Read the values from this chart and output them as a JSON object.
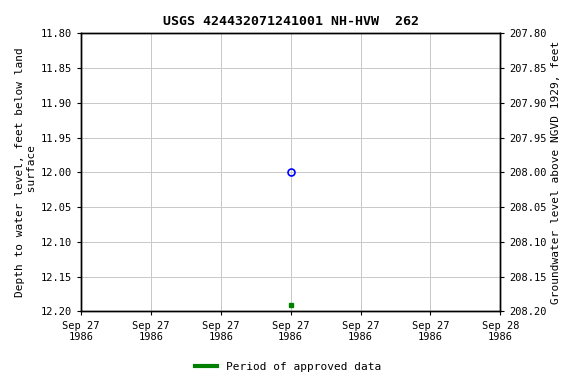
{
  "title": "USGS 424432071241001 NH-HVW  262",
  "ylabel_left": "Depth to water level, feet below land\n surface",
  "ylabel_right": "Groundwater level above NGVD 1929, feet",
  "xlabel_ticks": [
    "Sep 27\n1986",
    "Sep 27\n1986",
    "Sep 27\n1986",
    "Sep 27\n1986",
    "Sep 27\n1986",
    "Sep 27\n1986",
    "Sep 28\n1986"
  ],
  "ylim_left": [
    11.8,
    12.2
  ],
  "ylim_right_top": 208.2,
  "ylim_right_bottom": 207.8,
  "yticks_left": [
    11.8,
    11.85,
    11.9,
    11.95,
    12.0,
    12.05,
    12.1,
    12.15,
    12.2
  ],
  "ytick_labels_left": [
    "11.80",
    "11.85",
    "11.90",
    "11.95",
    "12.00",
    "12.05",
    "12.10",
    "12.15",
    "12.20"
  ],
  "yticks_right": [
    208.2,
    208.15,
    208.1,
    208.05,
    208.0,
    207.95,
    207.9,
    207.85,
    207.8
  ],
  "ytick_labels_right": [
    "208.20",
    "208.15",
    "208.10",
    "208.05",
    "208.00",
    "207.95",
    "207.90",
    "207.85",
    "207.80"
  ],
  "point_open_x": 3.0,
  "point_open_y": 12.0,
  "point_open_color": "blue",
  "point_filled_x": 3.0,
  "point_filled_y": 12.19,
  "point_filled_color": "green",
  "legend_label": "Period of approved data",
  "legend_color": "green",
  "background_color": "white",
  "grid_color": "#c8c8c8",
  "font_color": "black",
  "x_range": [
    0,
    6
  ]
}
